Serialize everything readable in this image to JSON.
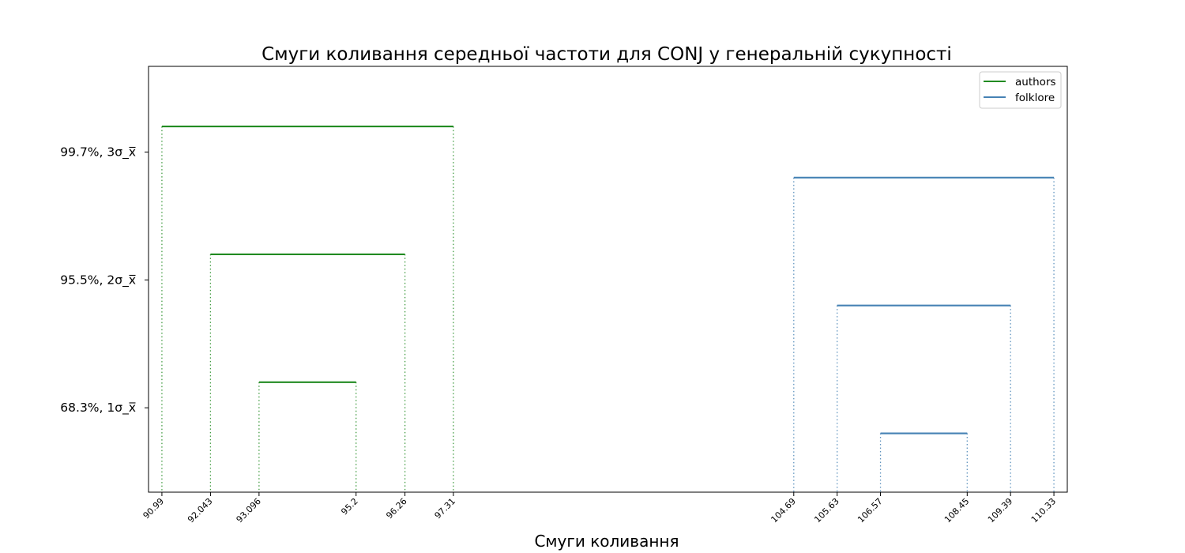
{
  "chart_data": {
    "type": "line",
    "title": "Смуги коливання середньої частоти для CONJ у генеральній сукупності",
    "xlabel": "Смуги коливання",
    "ylabel": "",
    "yticks": [
      {
        "level": 1,
        "label": "68.3%,  1σ_x̅"
      },
      {
        "level": 2,
        "label": "95.5%,  2σ_x̅"
      },
      {
        "level": 3,
        "label": "99.7%,  3σ_x̅"
      }
    ],
    "ylim": [
      0.34,
      3.67
    ],
    "xticks": [
      {
        "value": 90.99,
        "label": "90.99"
      },
      {
        "value": 92.043,
        "label": "92.043"
      },
      {
        "value": 93.096,
        "label": "93.096"
      },
      {
        "value": 95.2,
        "label": "95.2"
      },
      {
        "value": 96.26,
        "label": "96.26"
      },
      {
        "value": 97.31,
        "label": "97.31"
      },
      {
        "value": 104.69,
        "label": "104.69"
      },
      {
        "value": 105.63,
        "label": "105.63"
      },
      {
        "value": 106.57,
        "label": "106.57"
      },
      {
        "value": 108.45,
        "label": "108.45"
      },
      {
        "value": 109.39,
        "label": "109.39"
      },
      {
        "value": 110.33,
        "label": "110.33"
      }
    ],
    "grid": false,
    "legend_position": "top-right",
    "series": [
      {
        "name": "authors",
        "color": "#228B22",
        "bands": [
          {
            "level": 1.2,
            "low": 93.096,
            "high": 95.2
          },
          {
            "level": 2.2,
            "low": 92.043,
            "high": 96.26
          },
          {
            "level": 3.2,
            "low": 90.99,
            "high": 97.31
          }
        ]
      },
      {
        "name": "folklore",
        "color": "#4682B4",
        "bands": [
          {
            "level": 0.8,
            "low": 106.57,
            "high": 108.45
          },
          {
            "level": 1.8,
            "low": 105.63,
            "high": 109.39
          },
          {
            "level": 2.8,
            "low": 104.69,
            "high": 110.33
          }
        ]
      }
    ]
  }
}
